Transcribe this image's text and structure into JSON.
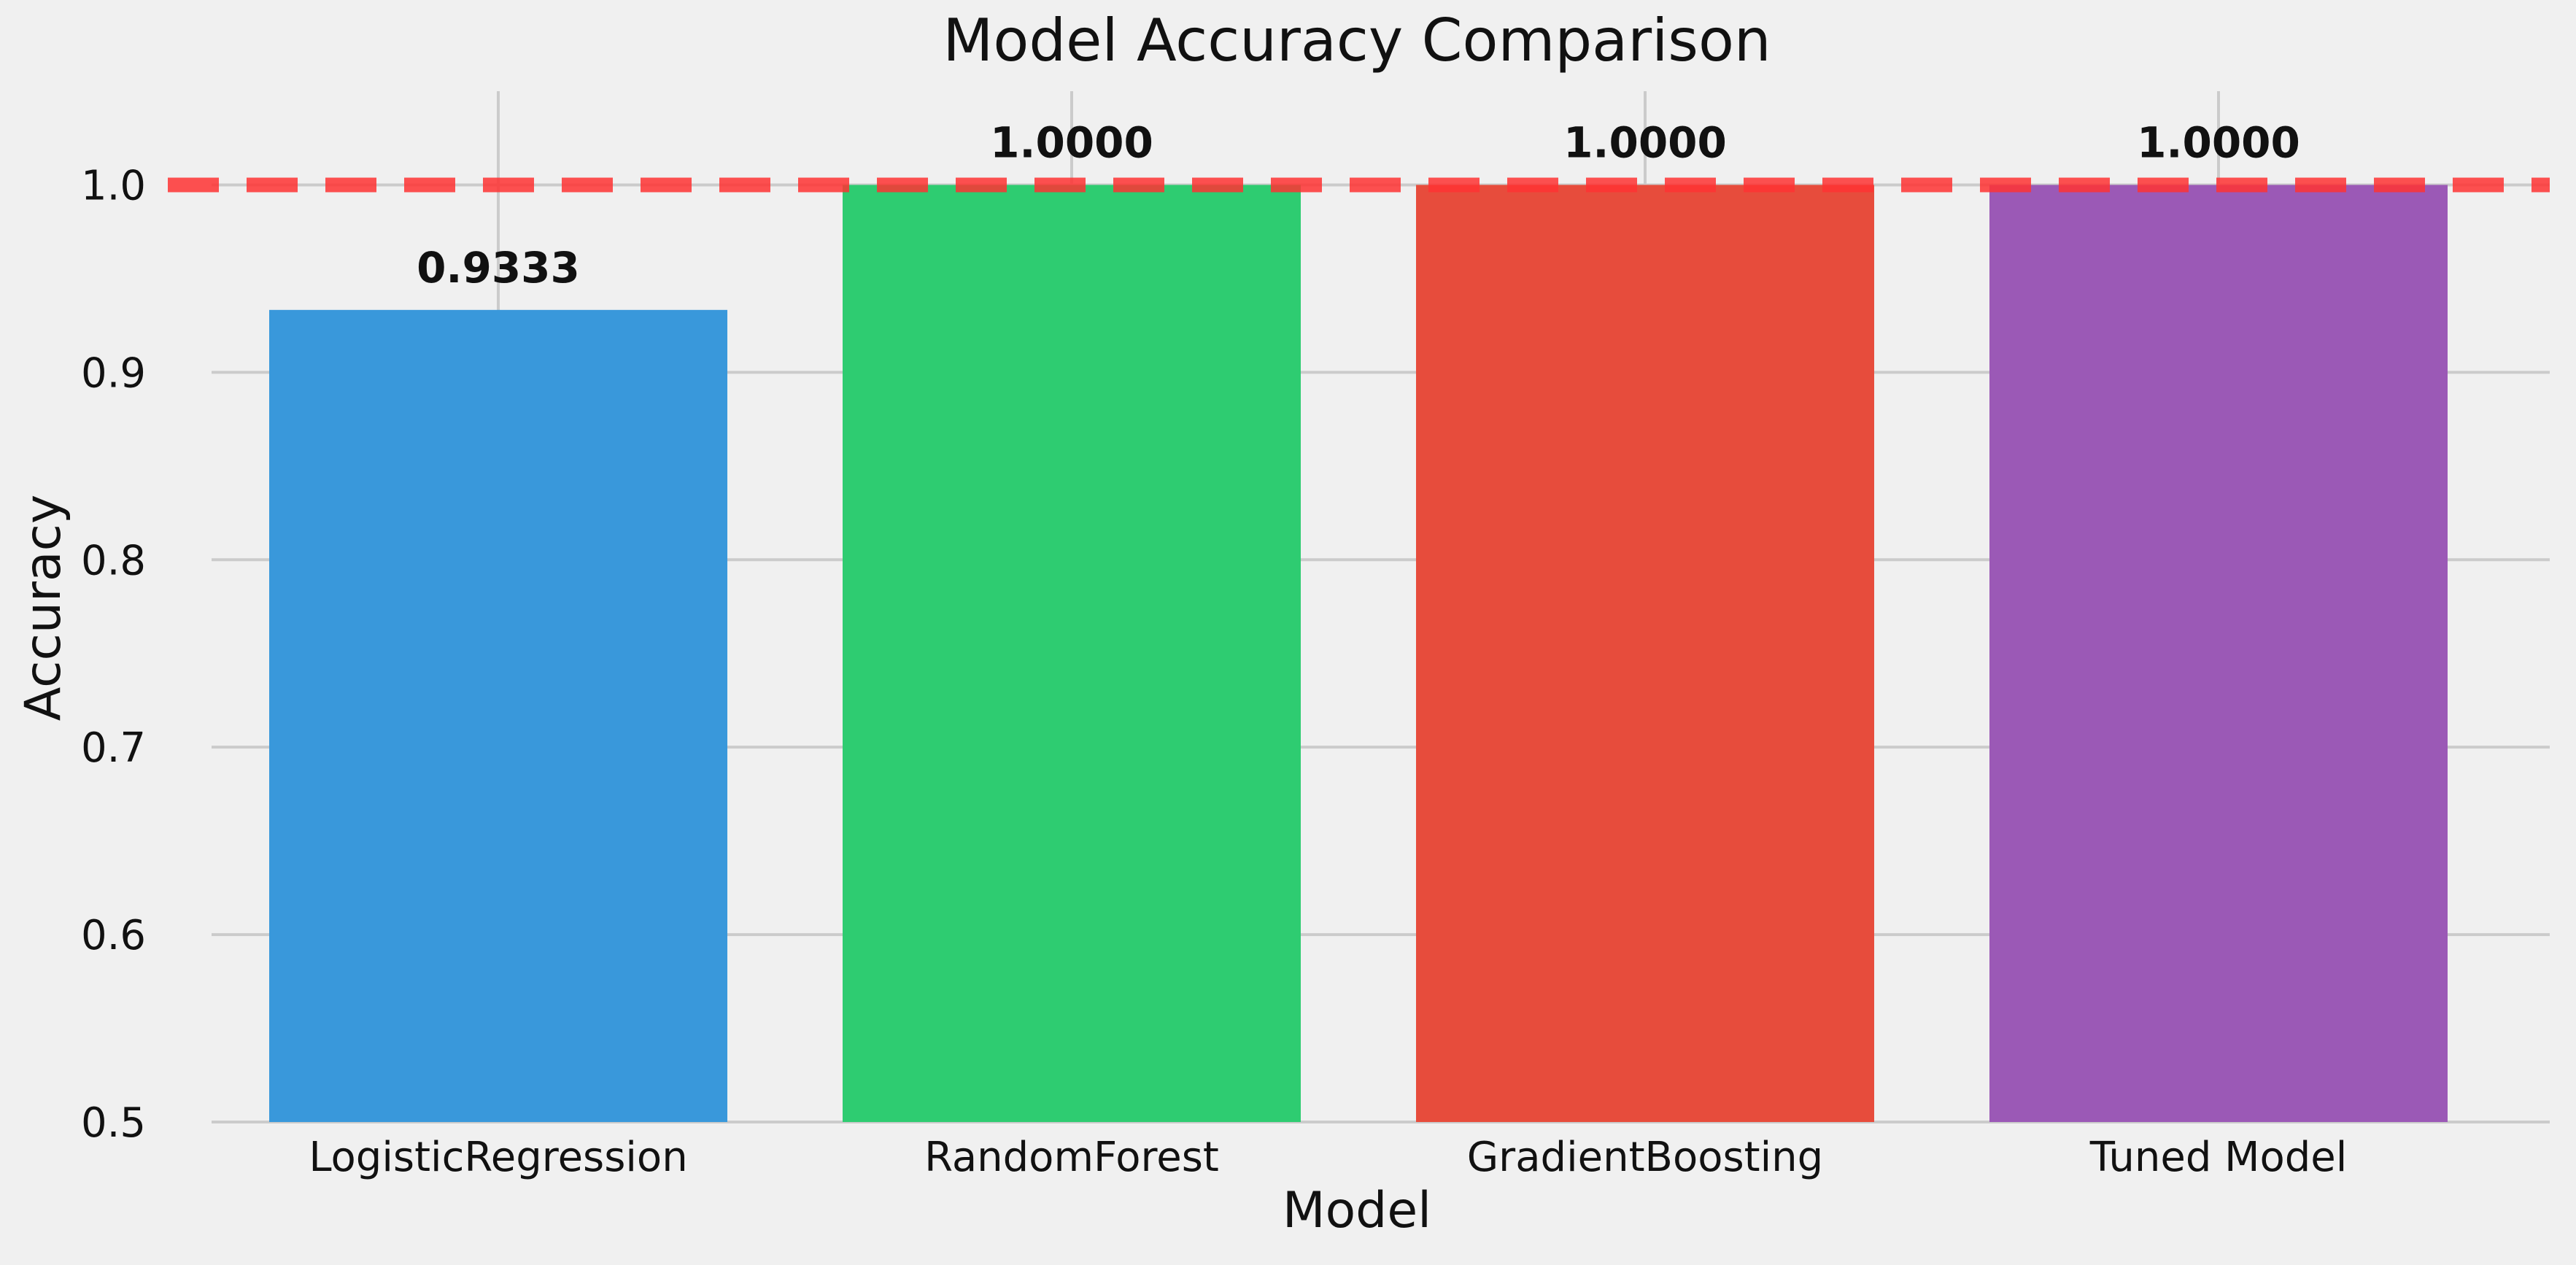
{
  "chart_data": {
    "type": "bar",
    "title": "Model Accuracy Comparison",
    "xlabel": "Model",
    "ylabel": "Accuracy",
    "categories": [
      "LogisticRegression",
      "RandomForest",
      "GradientBoosting",
      "Tuned Model"
    ],
    "values": [
      0.9333,
      1.0,
      1.0,
      1.0
    ],
    "value_labels": [
      "0.9333",
      "1.0000",
      "1.0000",
      "1.0000"
    ],
    "bar_colors": [
      "#3998db",
      "#2ecc71",
      "#e74c3c",
      "#9b59b6"
    ],
    "ylim": [
      0.5,
      1.05
    ],
    "yticks": [
      0.5,
      0.6,
      0.7,
      0.8,
      0.9,
      1.0
    ],
    "ytick_labels": [
      "0.5",
      "0.6",
      "0.7",
      "0.8",
      "0.9",
      "1.0"
    ],
    "reference_line": {
      "y": 1.0,
      "style": "dashed",
      "color": "#ff3333"
    },
    "grid": true,
    "legend": "none"
  }
}
